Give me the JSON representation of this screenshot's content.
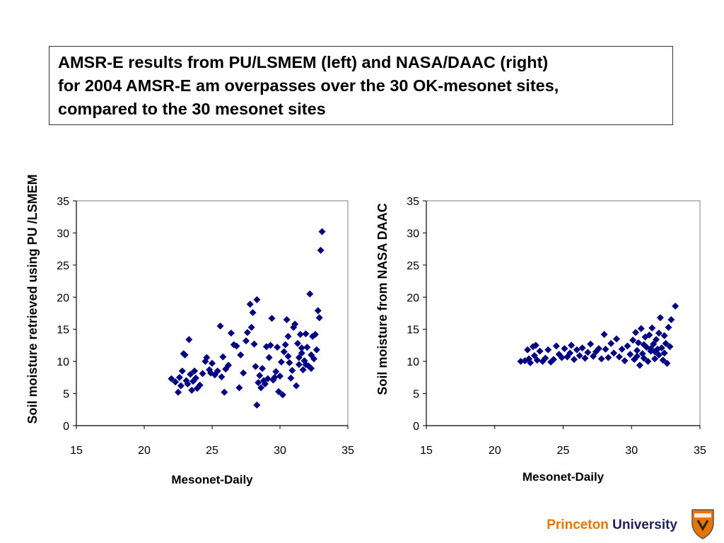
{
  "title": {
    "line1": "AMSR-E results from PU/LSMEM (left) and NASA/DAAC (right)",
    "line2": "for 2004 AMSR-E am overpasses over the 30 OK-mesonet sites,",
    "line3": "compared to the 30 mesonet sites"
  },
  "footer": {
    "word1": "Princeton",
    "word2": "University",
    "logo_icon": "princeton-shield-icon"
  },
  "colors": {
    "marker": "#000080",
    "footer_orange": "#e77500",
    "footer_navy": "#1f1f5e",
    "shield_orange": "#e77500"
  },
  "chart_data": [
    {
      "type": "scatter",
      "title": "",
      "xlabel": "Mesonet-Daily",
      "ylabel": "Soil moisture retrieved using PU /LSMEM",
      "xlim": [
        15,
        35
      ],
      "ylim": [
        0,
        35
      ],
      "xticks": [
        "15",
        "20",
        "25",
        "30",
        "35"
      ],
      "yticks": [
        "0",
        "5",
        "10",
        "15",
        "20",
        "25",
        "30",
        "35"
      ],
      "series": [
        {
          "name": "PU/LSMEM",
          "marker": "diamond",
          "points": [
            [
              22.0,
              7.3
            ],
            [
              22.3,
              6.8
            ],
            [
              22.5,
              5.2
            ],
            [
              22.6,
              7.5
            ],
            [
              22.7,
              6.2
            ],
            [
              22.8,
              8.5
            ],
            [
              22.9,
              11.2
            ],
            [
              23.0,
              11.0
            ],
            [
              23.1,
              7.0
            ],
            [
              23.2,
              6.5
            ],
            [
              23.3,
              13.4
            ],
            [
              23.4,
              8.0
            ],
            [
              23.5,
              5.5
            ],
            [
              23.6,
              6.9
            ],
            [
              23.7,
              8.5
            ],
            [
              23.8,
              7.4
            ],
            [
              23.9,
              5.8
            ],
            [
              24.1,
              6.3
            ],
            [
              24.3,
              8.1
            ],
            [
              24.5,
              10.0
            ],
            [
              24.6,
              10.6
            ],
            [
              24.8,
              8.7
            ],
            [
              24.9,
              8.2
            ],
            [
              25.0,
              9.7
            ],
            [
              25.2,
              7.9
            ],
            [
              25.4,
              8.5
            ],
            [
              25.6,
              15.5
            ],
            [
              25.7,
              7.6
            ],
            [
              25.8,
              10.7
            ],
            [
              25.9,
              5.2
            ],
            [
              26.0,
              8.8
            ],
            [
              26.2,
              9.4
            ],
            [
              26.4,
              14.4
            ],
            [
              26.6,
              12.6
            ],
            [
              26.8,
              12.4
            ],
            [
              27.0,
              5.9
            ],
            [
              27.1,
              11.0
            ],
            [
              27.3,
              8.2
            ],
            [
              27.5,
              13.2
            ],
            [
              27.6,
              14.5
            ],
            [
              27.8,
              18.9
            ],
            [
              27.9,
              15.3
            ],
            [
              28.0,
              17.6
            ],
            [
              28.1,
              12.7
            ],
            [
              28.2,
              9.2
            ],
            [
              28.3,
              19.6
            ],
            [
              28.3,
              3.2
            ],
            [
              28.4,
              6.7
            ],
            [
              28.5,
              7.8
            ],
            [
              28.6,
              5.9
            ],
            [
              28.7,
              8.9
            ],
            [
              28.8,
              7.0
            ],
            [
              28.9,
              6.5
            ],
            [
              29.0,
              12.3
            ],
            [
              29.1,
              7.3
            ],
            [
              29.2,
              10.6
            ],
            [
              29.3,
              12.5
            ],
            [
              29.4,
              16.7
            ],
            [
              29.5,
              7.1
            ],
            [
              29.6,
              7.5
            ],
            [
              29.7,
              8.4
            ],
            [
              29.8,
              12.2
            ],
            [
              29.9,
              5.3
            ],
            [
              30.0,
              7.7
            ],
            [
              30.1,
              9.9
            ],
            [
              30.2,
              4.8
            ],
            [
              30.3,
              11.5
            ],
            [
              30.4,
              12.6
            ],
            [
              30.5,
              16.5
            ],
            [
              30.6,
              13.9
            ],
            [
              30.7,
              9.8
            ],
            [
              30.8,
              7.4
            ],
            [
              30.9,
              8.6
            ],
            [
              31.0,
              15.3
            ],
            [
              31.1,
              15.8
            ],
            [
              31.2,
              6.2
            ],
            [
              31.3,
              12.8
            ],
            [
              31.4,
              9.5
            ],
            [
              31.5,
              14.2
            ],
            [
              31.6,
              11.3
            ],
            [
              31.7,
              8.7
            ],
            [
              31.8,
              10.1
            ],
            [
              31.9,
              14.3
            ],
            [
              32.0,
              12.2
            ],
            [
              32.1,
              9.3
            ],
            [
              32.2,
              20.5
            ],
            [
              32.3,
              8.9
            ],
            [
              32.4,
              13.9
            ],
            [
              32.5,
              10.4
            ],
            [
              32.6,
              14.2
            ],
            [
              32.7,
              11.8
            ],
            [
              32.8,
              17.9
            ],
            [
              32.9,
              16.8
            ],
            [
              33.1,
              30.2
            ],
            [
              33.0,
              27.3
            ],
            [
              31.9,
              9.5
            ],
            [
              31.6,
              12.1
            ],
            [
              32.3,
              11.0
            ],
            [
              30.6,
              10.8
            ],
            [
              31.4,
              10.6
            ]
          ]
        }
      ]
    },
    {
      "type": "scatter",
      "title": "",
      "xlabel": "Mesonet-Daily",
      "ylabel": "Soil moisture from NASA DAAC",
      "xlim": [
        15,
        35
      ],
      "ylim": [
        0,
        35
      ],
      "xticks": [
        "15",
        "20",
        "25",
        "30",
        "35"
      ],
      "yticks": [
        "0",
        "5",
        "10",
        "15",
        "20",
        "25",
        "30",
        "35"
      ],
      "series": [
        {
          "name": "NASA DAAC",
          "marker": "diamond",
          "points": [
            [
              21.9,
              10.0
            ],
            [
              22.2,
              10.1
            ],
            [
              22.4,
              11.8
            ],
            [
              22.5,
              10.4
            ],
            [
              22.6,
              9.8
            ],
            [
              22.8,
              12.3
            ],
            [
              22.9,
              10.9
            ],
            [
              23.0,
              12.5
            ],
            [
              23.1,
              10.2
            ],
            [
              23.3,
              11.6
            ],
            [
              23.5,
              10.0
            ],
            [
              23.7,
              10.5
            ],
            [
              23.9,
              11.8
            ],
            [
              24.1,
              9.9
            ],
            [
              24.3,
              10.3
            ],
            [
              24.5,
              12.4
            ],
            [
              24.7,
              11.1
            ],
            [
              24.9,
              10.6
            ],
            [
              25.1,
              12.0
            ],
            [
              25.3,
              10.7
            ],
            [
              25.5,
              11.3
            ],
            [
              25.6,
              12.5
            ],
            [
              25.8,
              10.3
            ],
            [
              26.0,
              11.8
            ],
            [
              26.2,
              10.9
            ],
            [
              26.4,
              12.1
            ],
            [
              26.6,
              10.5
            ],
            [
              26.8,
              11.4
            ],
            [
              27.0,
              12.7
            ],
            [
              27.2,
              10.8
            ],
            [
              27.4,
              11.5
            ],
            [
              27.6,
              12.0
            ],
            [
              27.8,
              10.4
            ],
            [
              28.0,
              14.2
            ],
            [
              28.1,
              11.9
            ],
            [
              28.3,
              10.6
            ],
            [
              28.5,
              12.8
            ],
            [
              28.7,
              11.3
            ],
            [
              28.9,
              13.5
            ],
            [
              29.1,
              10.7
            ],
            [
              29.3,
              11.9
            ],
            [
              29.5,
              10.1
            ],
            [
              29.7,
              12.4
            ],
            [
              29.9,
              11.1
            ],
            [
              30.1,
              13.3
            ],
            [
              30.2,
              10.3
            ],
            [
              30.3,
              14.5
            ],
            [
              30.4,
              11.7
            ],
            [
              30.5,
              12.9
            ],
            [
              30.6,
              9.4
            ],
            [
              30.7,
              15.1
            ],
            [
              30.8,
              11.2
            ],
            [
              30.9,
              10.5
            ],
            [
              31.0,
              13.8
            ],
            [
              31.1,
              12.2
            ],
            [
              31.2,
              10.0
            ],
            [
              31.3,
              14.1
            ],
            [
              31.4,
              11.6
            ],
            [
              31.5,
              15.2
            ],
            [
              31.6,
              12.7
            ],
            [
              31.7,
              10.4
            ],
            [
              31.8,
              13.4
            ],
            [
              31.9,
              11.9
            ],
            [
              32.0,
              14.4
            ],
            [
              32.1,
              16.8
            ],
            [
              32.2,
              12.1
            ],
            [
              32.3,
              10.2
            ],
            [
              32.4,
              14.0
            ],
            [
              32.5,
              12.8
            ],
            [
              32.6,
              9.7
            ],
            [
              32.7,
              15.3
            ],
            [
              32.8,
              12.3
            ],
            [
              32.9,
              16.5
            ],
            [
              33.2,
              18.6
            ],
            [
              32.0,
              11.0
            ],
            [
              31.4,
              12.0
            ],
            [
              30.9,
              12.6
            ],
            [
              31.7,
              11.5
            ],
            [
              32.4,
              11.3
            ],
            [
              30.4,
              10.8
            ]
          ]
        }
      ]
    }
  ]
}
